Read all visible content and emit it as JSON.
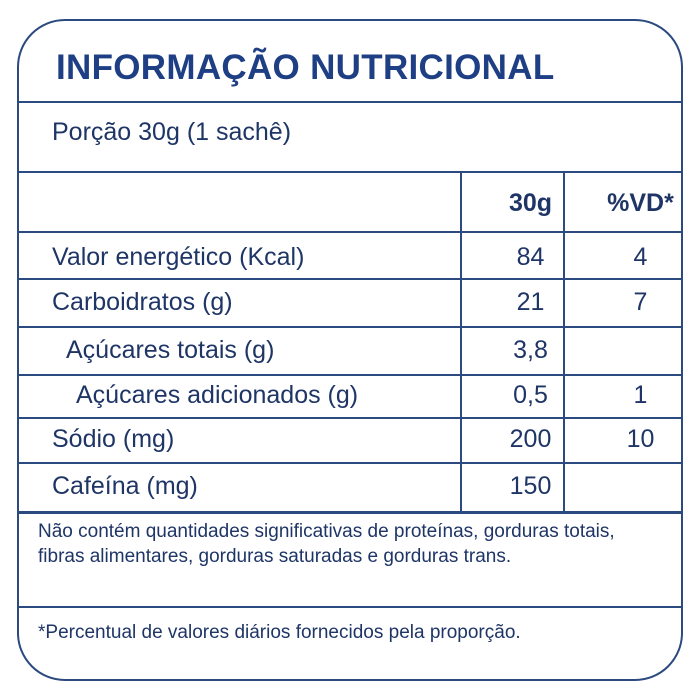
{
  "title": "INFORMAÇÃO NUTRICIONAL",
  "portion": "Porção 30g (1 sachê)",
  "columns": {
    "amount": "30g",
    "dv": "%VD*"
  },
  "rows": [
    {
      "label": "Valor energético (Kcal)",
      "amount": "84",
      "dv": "4"
    },
    {
      "label": "Carboidratos (g)",
      "amount": "21",
      "dv": "7"
    },
    {
      "label": "Açúcares totais (g)",
      "amount": "3,8",
      "dv": ""
    },
    {
      "label": "Açúcares adicionados (g)",
      "amount": "0,5",
      "dv": "1"
    },
    {
      "label": "Sódio (mg)",
      "amount": "200",
      "dv": "10"
    },
    {
      "label": "Cafeína (mg)",
      "amount": "150",
      "dv": ""
    }
  ],
  "note": "Não contém quantidades significativas de proteínas, gorduras totais, fibras alimentares, gorduras saturadas e gorduras trans.",
  "footnote": "*Percentual de valores diários fornecidos pela proporção.",
  "colors": {
    "text": "#1e3566",
    "title": "#1f3f85",
    "border": "#2b4a80"
  }
}
